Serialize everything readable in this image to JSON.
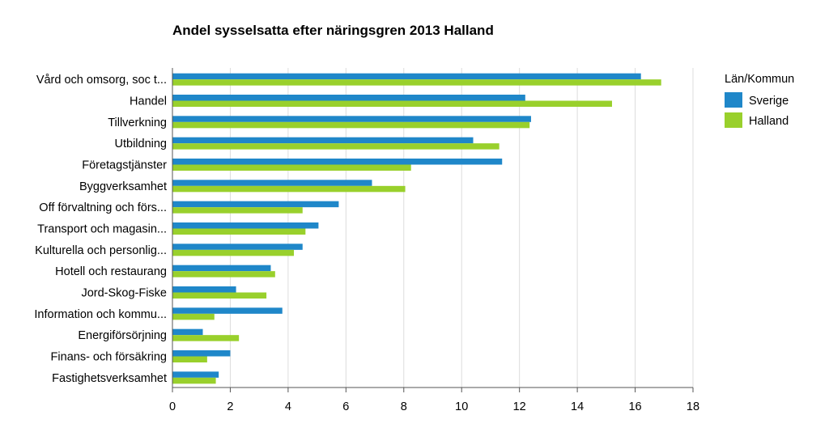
{
  "chart_data": {
    "type": "bar",
    "orientation": "horizontal",
    "title": "Andel sysselsatta efter näringsgren 2013 Halland",
    "categories": [
      "Vård och omsorg, soc t...",
      "Handel",
      "Tillverkning",
      "Utbildning",
      "Företagstjänster",
      "Byggverksamhet",
      "Off förvaltning och förs...",
      "Transport och magasin...",
      "Kulturella och personlig...",
      "Hotell och restaurang",
      "Jord-Skog-Fiske",
      "Information och kommu...",
      "Energiförsörjning",
      "Finans- och försäkring",
      "Fastighetsverksamhet"
    ],
    "series": [
      {
        "name": "Sverige",
        "color": "#1f87c9",
        "values": [
          16.2,
          12.2,
          12.4,
          10.4,
          11.4,
          6.9,
          5.75,
          5.05,
          4.5,
          3.4,
          2.2,
          3.8,
          1.05,
          2.0,
          1.6
        ]
      },
      {
        "name": "Halland",
        "color": "#99d02c",
        "values": [
          16.9,
          15.2,
          12.35,
          11.3,
          8.25,
          8.05,
          4.5,
          4.6,
          4.2,
          3.55,
          3.25,
          1.45,
          2.3,
          1.2,
          1.5
        ]
      }
    ],
    "xlim": [
      0,
      18
    ],
    "xticks": [
      0,
      2,
      4,
      6,
      8,
      10,
      12,
      14,
      16,
      18
    ],
    "xlabel": "",
    "ylabel": "",
    "grid": true,
    "legend": {
      "title": "Län/Kommun",
      "placement": "top-right"
    }
  }
}
